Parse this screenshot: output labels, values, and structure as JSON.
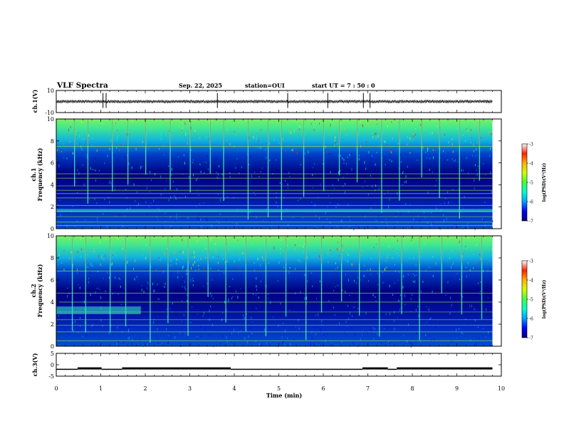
{
  "header": {
    "title": "VLF Spectra",
    "date": "Sep. 22, 2025",
    "station": "station=OUI",
    "start": "start UT =  7 : 50 : 0"
  },
  "colors": {
    "cmap": [
      "#00007a",
      "#0000ff",
      "#00a0ff",
      "#00ffd0",
      "#40ff40",
      "#d0ff00",
      "#ffb000",
      "#ff2000",
      "#ffffff"
    ],
    "waveform": "#000000",
    "axes": "#000000"
  },
  "chart_data": [
    {
      "type": "line",
      "name": "ch1-waveform",
      "ylabel": "ch.1(V)",
      "ylim": [
        -10,
        10
      ],
      "yticks": [
        "10",
        "-10"
      ],
      "baseline": 0,
      "spike_times": [
        1.05,
        1.12,
        3.62,
        5.2,
        6.1,
        6.9,
        7.05
      ]
    },
    {
      "type": "heatmap",
      "name": "ch1-spectrogram",
      "ylabel_top": "ch.1",
      "ylabel": "Frequency (kHz)",
      "ylim": [
        0,
        10
      ],
      "yticks": [
        "0",
        "2",
        "4",
        "6",
        "8",
        "10"
      ],
      "colorbar_label": "log(PSD)(V²/Hz)",
      "colorbar_ticks": [
        "-3",
        "-4",
        "-5",
        "-6",
        "-7"
      ],
      "colorbar_range": [
        -7,
        -3
      ],
      "lines_khz": [
        0.3,
        0.6,
        1.1,
        1.6,
        2.1,
        2.8,
        3.2,
        3.5,
        3.9,
        4.6,
        5.0,
        7.5
      ],
      "band": {
        "t_start": 0,
        "t_end": 9.8,
        "f_low": 1.5,
        "f_high": 1.8
      },
      "sferic_times": [
        0.4,
        0.7,
        1.25,
        1.6,
        2.0,
        2.55,
        3.0,
        3.45,
        3.75,
        4.3,
        4.75,
        5.05,
        5.55,
        6.0,
        6.35,
        6.75,
        7.3,
        7.7,
        8.2,
        8.6,
        9.05,
        9.5
      ]
    },
    {
      "type": "heatmap",
      "name": "ch2-spectrogram",
      "ylabel_top": "ch.2",
      "ylabel": "Frequency (kHz)",
      "ylim": [
        0,
        10
      ],
      "yticks": [
        "0",
        "2",
        "4",
        "6",
        "8",
        "10"
      ],
      "colorbar_label": "log(PSD)(V²/Hz)",
      "colorbar_ticks": [
        "-3",
        "-4",
        "-5",
        "-6",
        "-7"
      ],
      "colorbar_range": [
        -7,
        -3
      ],
      "lines_khz": [
        0.5,
        1.3,
        1.9,
        2.4,
        3.1,
        4.0,
        4.8,
        6.8
      ],
      "band": {
        "t_start": 0,
        "t_end": 1.9,
        "f_low": 2.9,
        "f_high": 3.6
      },
      "sferic_times": [
        0.35,
        0.65,
        1.2,
        1.55,
        2.1,
        2.5,
        2.95,
        3.4,
        3.8,
        4.25,
        4.7,
        5.15,
        5.6,
        5.95,
        6.4,
        6.8,
        7.25,
        7.75,
        8.15,
        8.65,
        9.1,
        9.55
      ]
    },
    {
      "type": "line",
      "name": "ch3-status",
      "ylabel": "ch.3(V)",
      "ylim": [
        -5,
        5
      ],
      "yticks": [
        "5",
        "0",
        "-5"
      ],
      "segments": [
        {
          "t0": 0.0,
          "t1": 0.48,
          "level": -2
        },
        {
          "t0": 0.48,
          "t1": 1.02,
          "level": -1.6
        },
        {
          "t0": 1.02,
          "t1": 1.48,
          "level": -2
        },
        {
          "t0": 1.48,
          "t1": 3.92,
          "level": -1.6
        },
        {
          "t0": 3.92,
          "t1": 6.88,
          "level": -2
        },
        {
          "t0": 6.88,
          "t1": 7.45,
          "level": -1.6
        },
        {
          "t0": 7.45,
          "t1": 7.65,
          "level": -2
        },
        {
          "t0": 7.65,
          "t1": 9.8,
          "level": -1.6
        }
      ]
    }
  ],
  "xaxis": {
    "label": "Time (min)",
    "range": [
      0,
      10
    ],
    "ticks": [
      "0",
      "1",
      "2",
      "3",
      "4",
      "5",
      "6",
      "7",
      "8",
      "9",
      "10"
    ]
  }
}
